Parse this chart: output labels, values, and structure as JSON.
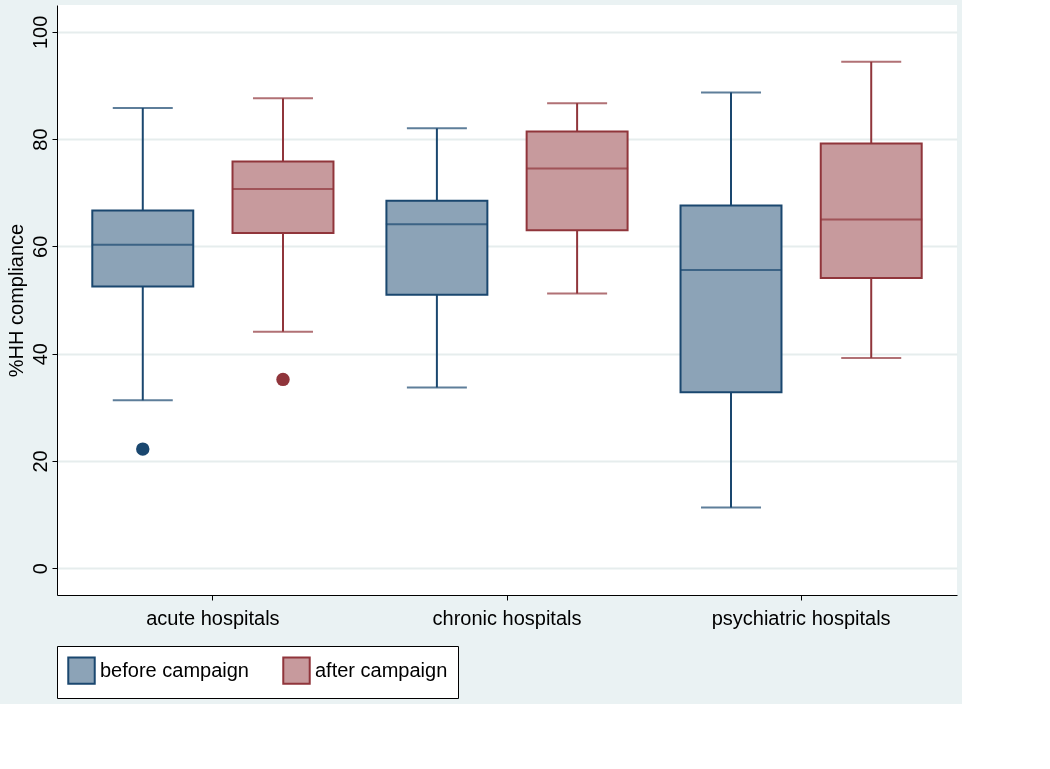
{
  "chart_data": {
    "type": "box",
    "ylabel": "%HH compliance",
    "categories": [
      "acute hospitals",
      "chronic hospitals",
      "psychiatric hospitals"
    ],
    "series": [
      {
        "name": "before campaign",
        "color": "#1a476f",
        "boxes": [
          {
            "low": 31.3,
            "q1": 52.5,
            "median": 60.3,
            "q3": 66.7,
            "high": 85.8,
            "outliers": [
              22.2
            ]
          },
          {
            "low": 33.7,
            "q1": 51.0,
            "median": 64.1,
            "q3": 68.5,
            "high": 82.0
          },
          {
            "low": 11.3,
            "q1": 32.8,
            "median": 55.6,
            "q3": 67.6,
            "high": 88.7
          }
        ]
      },
      {
        "name": "after campaign",
        "color": "#90353b",
        "boxes": [
          {
            "low": 44.1,
            "q1": 62.5,
            "median": 70.7,
            "q3": 75.8,
            "high": 87.6,
            "outliers": [
              35.2
            ]
          },
          {
            "low": 51.2,
            "q1": 63.0,
            "median": 74.5,
            "q3": 81.4,
            "high": 86.7
          },
          {
            "low": 39.2,
            "q1": 54.1,
            "median": 65.0,
            "q3": 79.2,
            "high": 94.4
          }
        ]
      }
    ],
    "ylim": [
      -5,
      105
    ],
    "yticks": [
      0,
      20,
      40,
      60,
      80,
      100
    ],
    "grid": "y",
    "legend": "bottom"
  }
}
